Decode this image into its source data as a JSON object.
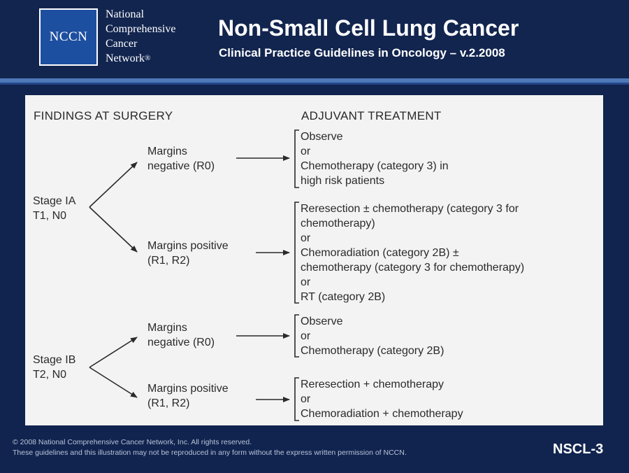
{
  "header": {
    "logo_text": "NCCN",
    "org_lines": [
      "National",
      "Comprehensive",
      "Cancer",
      "Network"
    ],
    "registered_mark": "®",
    "title": "Non-Small Cell Lung Cancer",
    "subtitle": "Clinical Practice Guidelines in Oncology – v.2.2008"
  },
  "columns": {
    "left": "FINDINGS AT SURGERY",
    "right": "ADJUVANT TREATMENT"
  },
  "stages": [
    {
      "label": [
        "Stage IA",
        "T1, N0"
      ],
      "branches": [
        {
          "margin": [
            "Margins",
            "negative (R0)"
          ],
          "treatment": [
            "Observe",
            "or",
            "Chemotherapy (category 3) in",
            "high risk patients"
          ]
        },
        {
          "margin": [
            "Margins positive",
            "(R1, R2)"
          ],
          "treatment": [
            "Reresection ± chemotherapy (category 3 for",
            "chemotherapy)",
            "or",
            "Chemoradiation (category 2B) ±",
            "chemotherapy (category 3 for chemotherapy)",
            "or",
            "RT (category 2B)"
          ]
        }
      ]
    },
    {
      "label": [
        "Stage IB",
        "T2, N0"
      ],
      "branches": [
        {
          "margin": [
            "Margins",
            "negative (R0)"
          ],
          "treatment": [
            "Observe",
            "or",
            "Chemotherapy (category 2B)"
          ]
        },
        {
          "margin": [
            "Margins positive",
            "(R1, R2)"
          ],
          "treatment": [
            "Reresection + chemotherapy",
            "or",
            "Chemoradiation + chemotherapy"
          ]
        }
      ]
    }
  ],
  "footer": {
    "copyright": "© 2008 National Comprehensive Cancer Network, Inc. All rights reserved.",
    "notice": "These guidelines and this illustration may not be reproduced in any form without the express written permission of NCCN.",
    "page_code": "NSCL-3"
  },
  "colors": {
    "background": "#11244f",
    "logo_blue": "#1d4fa0",
    "accent_rule": "#4e79b8",
    "panel": "#f3f3f3",
    "text_dark": "#2a2a2a"
  }
}
